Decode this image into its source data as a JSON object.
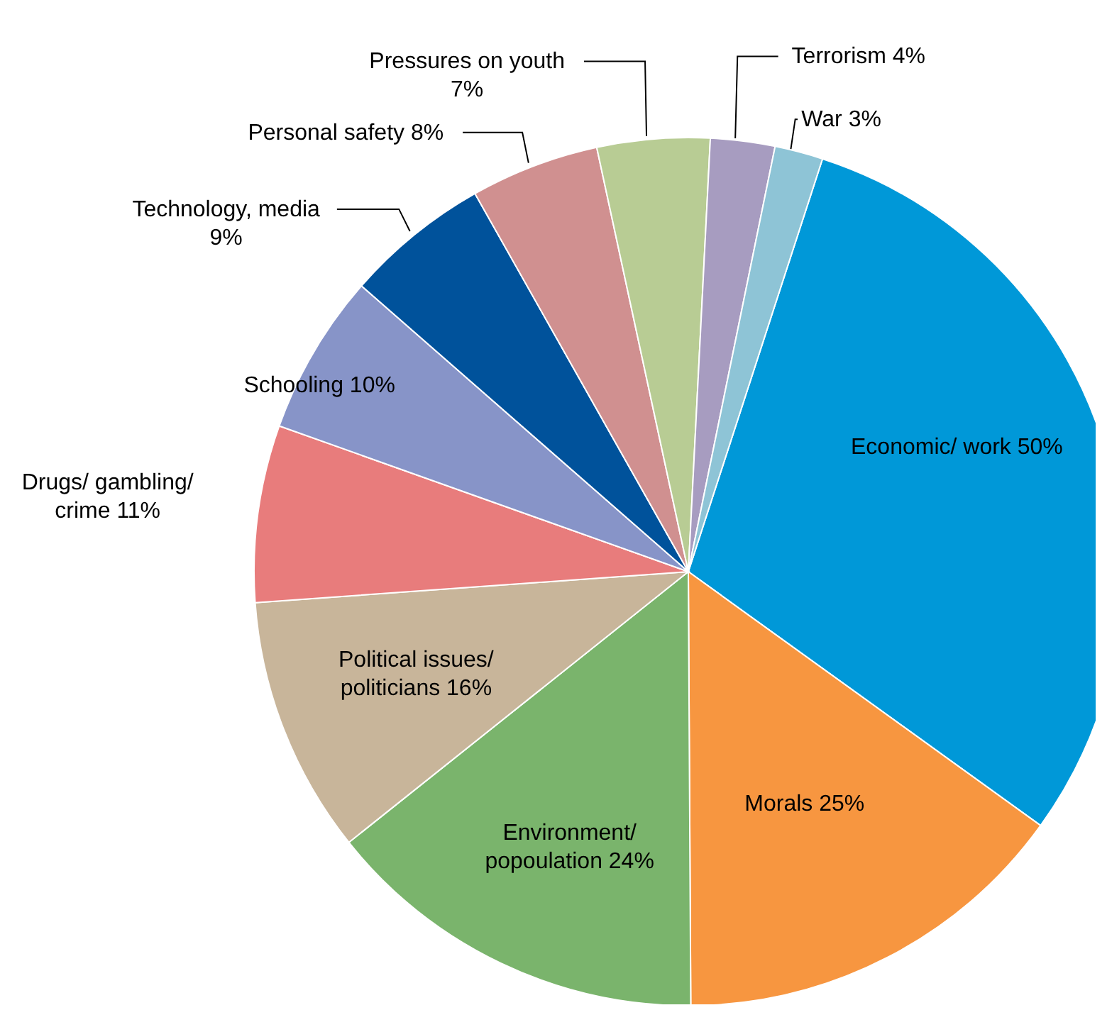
{
  "chart_data": {
    "type": "pie",
    "categories": [
      "Economic/ work",
      "Morals",
      "Environment/ popoulation",
      "Political issues/ politicians",
      "Drugs/ gambling/ crime",
      "Schooling",
      "Technology, media",
      "Personal safety",
      "Pressures on youth",
      "Terrorism",
      "War"
    ],
    "values": [
      50,
      25,
      24,
      16,
      11,
      10,
      9,
      8,
      7,
      4,
      3
    ],
    "value_labels": [
      "50%",
      "25%",
      "24%",
      "16%",
      "11%",
      "10%",
      "9%",
      "8%",
      "7%",
      "4%",
      "3%"
    ],
    "colors": [
      "#0098d8",
      "#f79640",
      "#7ab46c",
      "#c8b59a",
      "#e87c7c",
      "#8794c8",
      "#00529b",
      "#d09090",
      "#b8cc94",
      "#a79cc0",
      "#8ec4d6"
    ],
    "legend": false
  }
}
